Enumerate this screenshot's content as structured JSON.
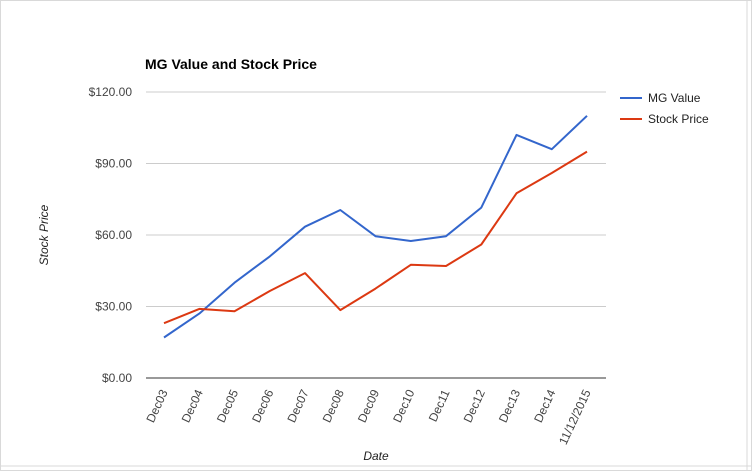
{
  "chart_data": {
    "type": "line",
    "title": "MG Value and Stock Price",
    "xlabel": "Date",
    "ylabel": "Stock Price",
    "categories": [
      "Dec03",
      "Dec04",
      "Dec05",
      "Dec06",
      "Dec07",
      "Dec08",
      "Dec09",
      "Dec10",
      "Dec11",
      "Dec12",
      "Dec13",
      "Dec14",
      "11/12/2015"
    ],
    "series": [
      {
        "name": "MG Value",
        "color": "#3366cc",
        "values": [
          17,
          27,
          40,
          51,
          63.5,
          70.5,
          59.5,
          57.5,
          59.5,
          71.5,
          102,
          96,
          110
        ]
      },
      {
        "name": "Stock Price",
        "color": "#dc3912",
        "values": [
          23,
          29,
          28,
          36.5,
          44,
          28.5,
          37.5,
          47.5,
          47,
          56,
          77.5,
          86,
          95
        ]
      }
    ],
    "ylim": [
      0,
      120
    ],
    "yticks": [
      0,
      30,
      60,
      90,
      120
    ],
    "ytick_labels": [
      "$0.00",
      "$30.00",
      "$60.00",
      "$90.00",
      "$120.00"
    ],
    "grid": true,
    "legend": "right"
  }
}
